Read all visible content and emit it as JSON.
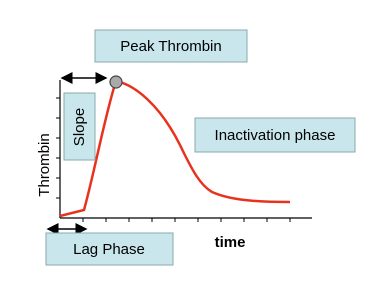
{
  "labels": {
    "peak": "Peak Thrombin",
    "slope": "Slope",
    "inactivation": "Inactivation phase",
    "y_axis": "Thrombin",
    "x_axis": "time",
    "lag": "Lag Phase"
  }
}
